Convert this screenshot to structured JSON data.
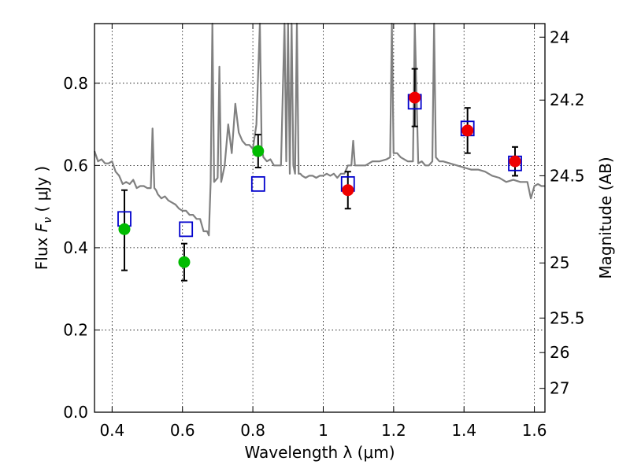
{
  "chart_data": {
    "type": "scatter",
    "xlabel": "Wavelength  λ (μm)",
    "ylabel": "Flux  F_ν  ( μJy )",
    "ylabel_parts": {
      "pre": "Flux  ",
      "F": "F",
      "nu": "ν",
      "unit": "  ( μJy )"
    },
    "y2label": "Magnitude (AB)",
    "xlim": [
      0.35,
      1.63
    ],
    "ylim": [
      0.0,
      0.945
    ],
    "grid": true,
    "x_ticks": [
      0.4,
      0.6,
      0.8,
      1.0,
      1.2,
      1.4,
      1.6
    ],
    "x_tick_labels": [
      "0.4",
      "0.6",
      "0.8",
      "1",
      "1.2",
      "1.4",
      "1.6"
    ],
    "y_ticks": [
      0.0,
      0.2,
      0.4,
      0.6,
      0.8
    ],
    "y_tick_labels": [
      "0.0",
      "0.2",
      "0.4",
      "0.6",
      "0.8"
    ],
    "right_axis_ticks": [
      {
        "label": "24",
        "flux": 0.912
      },
      {
        "label": "24.2",
        "flux": 0.759
      },
      {
        "label": "24.5",
        "flux": 0.575
      },
      {
        "label": "25",
        "flux": 0.363
      },
      {
        "label": "25.5",
        "flux": 0.229
      },
      {
        "label": "26",
        "flux": 0.145
      },
      {
        "label": "27",
        "flux": 0.058
      }
    ],
    "series": [
      {
        "name": "template_spectrum",
        "style": "line",
        "color": "#808080",
        "x": [
          0.35,
          0.36,
          0.37,
          0.38,
          0.39,
          0.4,
          0.41,
          0.42,
          0.43,
          0.44,
          0.45,
          0.46,
          0.47,
          0.48,
          0.49,
          0.5,
          0.51,
          0.515,
          0.52,
          0.525,
          0.53,
          0.54,
          0.55,
          0.56,
          0.57,
          0.58,
          0.59,
          0.6,
          0.61,
          0.62,
          0.63,
          0.64,
          0.65,
          0.66,
          0.67,
          0.675,
          0.68,
          0.685,
          0.69,
          0.7,
          0.705,
          0.71,
          0.715,
          0.72,
          0.73,
          0.74,
          0.75,
          0.76,
          0.77,
          0.78,
          0.79,
          0.8,
          0.81,
          0.82,
          0.825,
          0.83,
          0.84,
          0.85,
          0.86,
          0.87,
          0.88,
          0.89,
          0.895,
          0.9,
          0.905,
          0.91,
          0.915,
          0.92,
          0.925,
          0.93,
          0.935,
          0.94,
          0.95,
          0.96,
          0.97,
          0.98,
          0.99,
          1.0,
          1.01,
          1.02,
          1.03,
          1.04,
          1.05,
          1.06,
          1.07,
          1.08,
          1.085,
          1.09,
          1.095,
          1.1,
          1.12,
          1.14,
          1.16,
          1.18,
          1.19,
          1.195,
          1.2,
          1.205,
          1.21,
          1.22,
          1.24,
          1.255,
          1.26,
          1.27,
          1.28,
          1.29,
          1.3,
          1.31,
          1.315,
          1.32,
          1.33,
          1.34,
          1.36,
          1.38,
          1.4,
          1.42,
          1.44,
          1.46,
          1.48,
          1.5,
          1.52,
          1.54,
          1.56,
          1.58,
          1.59,
          1.6,
          1.61,
          1.62,
          1.63
        ],
        "y": [
          0.635,
          0.61,
          0.615,
          0.605,
          0.605,
          0.61,
          0.585,
          0.575,
          0.555,
          0.56,
          0.555,
          0.565,
          0.545,
          0.55,
          0.55,
          0.545,
          0.545,
          0.69,
          0.545,
          0.54,
          0.53,
          0.52,
          0.525,
          0.515,
          0.51,
          0.505,
          0.495,
          0.49,
          0.49,
          0.48,
          0.48,
          0.47,
          0.47,
          0.44,
          0.44,
          0.43,
          0.56,
          0.945,
          0.56,
          0.57,
          0.84,
          0.56,
          0.58,
          0.6,
          0.7,
          0.63,
          0.75,
          0.68,
          0.66,
          0.65,
          0.65,
          0.64,
          0.7,
          0.945,
          0.64,
          0.62,
          0.61,
          0.615,
          0.6,
          0.6,
          0.6,
          0.945,
          0.61,
          0.945,
          0.58,
          0.945,
          0.6,
          0.58,
          0.945,
          0.58,
          0.58,
          0.575,
          0.57,
          0.575,
          0.575,
          0.57,
          0.575,
          0.575,
          0.58,
          0.575,
          0.58,
          0.57,
          0.58,
          0.58,
          0.6,
          0.6,
          0.66,
          0.6,
          0.6,
          0.6,
          0.6,
          0.61,
          0.61,
          0.615,
          0.62,
          0.945,
          0.63,
          0.63,
          0.63,
          0.62,
          0.61,
          0.61,
          0.945,
          0.605,
          0.61,
          0.6,
          0.6,
          0.61,
          0.945,
          0.62,
          0.61,
          0.61,
          0.605,
          0.6,
          0.595,
          0.59,
          0.59,
          0.585,
          0.575,
          0.57,
          0.56,
          0.565,
          0.56,
          0.56,
          0.52,
          0.55,
          0.555,
          0.55,
          0.55
        ]
      },
      {
        "name": "model_photometry",
        "style": "open-square",
        "color": "#0000cc",
        "x": [
          0.435,
          0.61,
          0.815,
          1.07,
          1.26,
          1.41,
          1.545
        ],
        "y": [
          0.47,
          0.445,
          0.555,
          0.555,
          0.755,
          0.69,
          0.605
        ]
      },
      {
        "name": "observed_optical",
        "style": "filled-circle",
        "color": "#00bb00",
        "x": [
          0.435,
          0.605,
          0.815
        ],
        "y": [
          0.445,
          0.365,
          0.635
        ],
        "yerr_lo": [
          0.1,
          0.045,
          0.04
        ],
        "yerr_hi": [
          0.095,
          0.045,
          0.04
        ]
      },
      {
        "name": "observed_nir",
        "style": "filled-circle",
        "color": "#ee0000",
        "x": [
          1.07,
          1.26,
          1.41,
          1.545
        ],
        "y": [
          0.54,
          0.765,
          0.685,
          0.61
        ],
        "yerr_lo": [
          0.045,
          0.07,
          0.055,
          0.035
        ],
        "yerr_hi": [
          0.045,
          0.07,
          0.055,
          0.035
        ]
      }
    ]
  }
}
